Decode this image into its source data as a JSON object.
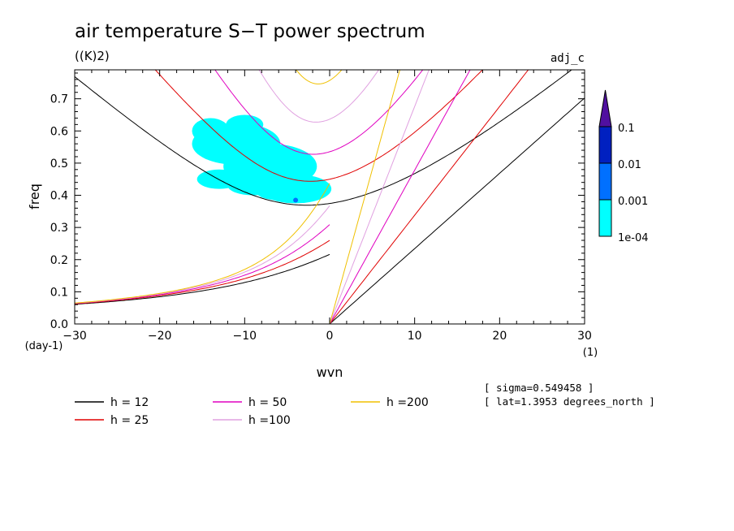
{
  "chart_data": {
    "type": "contour",
    "title": "air temperature S−T power spectrum",
    "units": "((K)2)",
    "dataset_label": "adj_c",
    "xlabel": "wvn",
    "ylabel": "freq",
    "x_unit": "(1)",
    "y_unit": "(day-1)",
    "xlim": [
      -30,
      30
    ],
    "ylim": [
      0,
      0.79
    ],
    "x_ticks": [
      -30,
      -20,
      -10,
      0,
      10,
      20,
      30
    ],
    "x_tick_labels": [
      "−30",
      "−20",
      "−10",
      "0",
      "10",
      "20",
      "30"
    ],
    "y_ticks": [
      0,
      0.1,
      0.2,
      0.3,
      0.4,
      0.5,
      0.6,
      0.7
    ],
    "y_tick_labels": [
      "0.0",
      "0.1",
      "0.2",
      "0.3",
      "0.4",
      "0.5",
      "0.6",
      "0.7"
    ],
    "colorbar": {
      "labels": [
        "0.1",
        "0.01",
        "0.001",
        "1e-04"
      ],
      "levels": [
        0.0001,
        0.001,
        0.01,
        0.1
      ],
      "colors": [
        "#00ffff",
        "#0070ff",
        "#0020c0",
        "#5010a0"
      ]
    },
    "series": [
      {
        "name": "h = 12",
        "h": 12,
        "color": "#000000"
      },
      {
        "name": "h = 25",
        "h": 25,
        "color": "#e00000"
      },
      {
        "name": "h = 50",
        "h": 50,
        "color": "#e000c0"
      },
      {
        "name": "h =100",
        "h": 100,
        "color": "#e0a0e0"
      },
      {
        "name": "h =200",
        "h": 200,
        "color": "#f0c000"
      }
    ],
    "info": [
      "[ sigma=0.549458 ]",
      "[ lat=1.3953 degrees_north ]"
    ]
  }
}
